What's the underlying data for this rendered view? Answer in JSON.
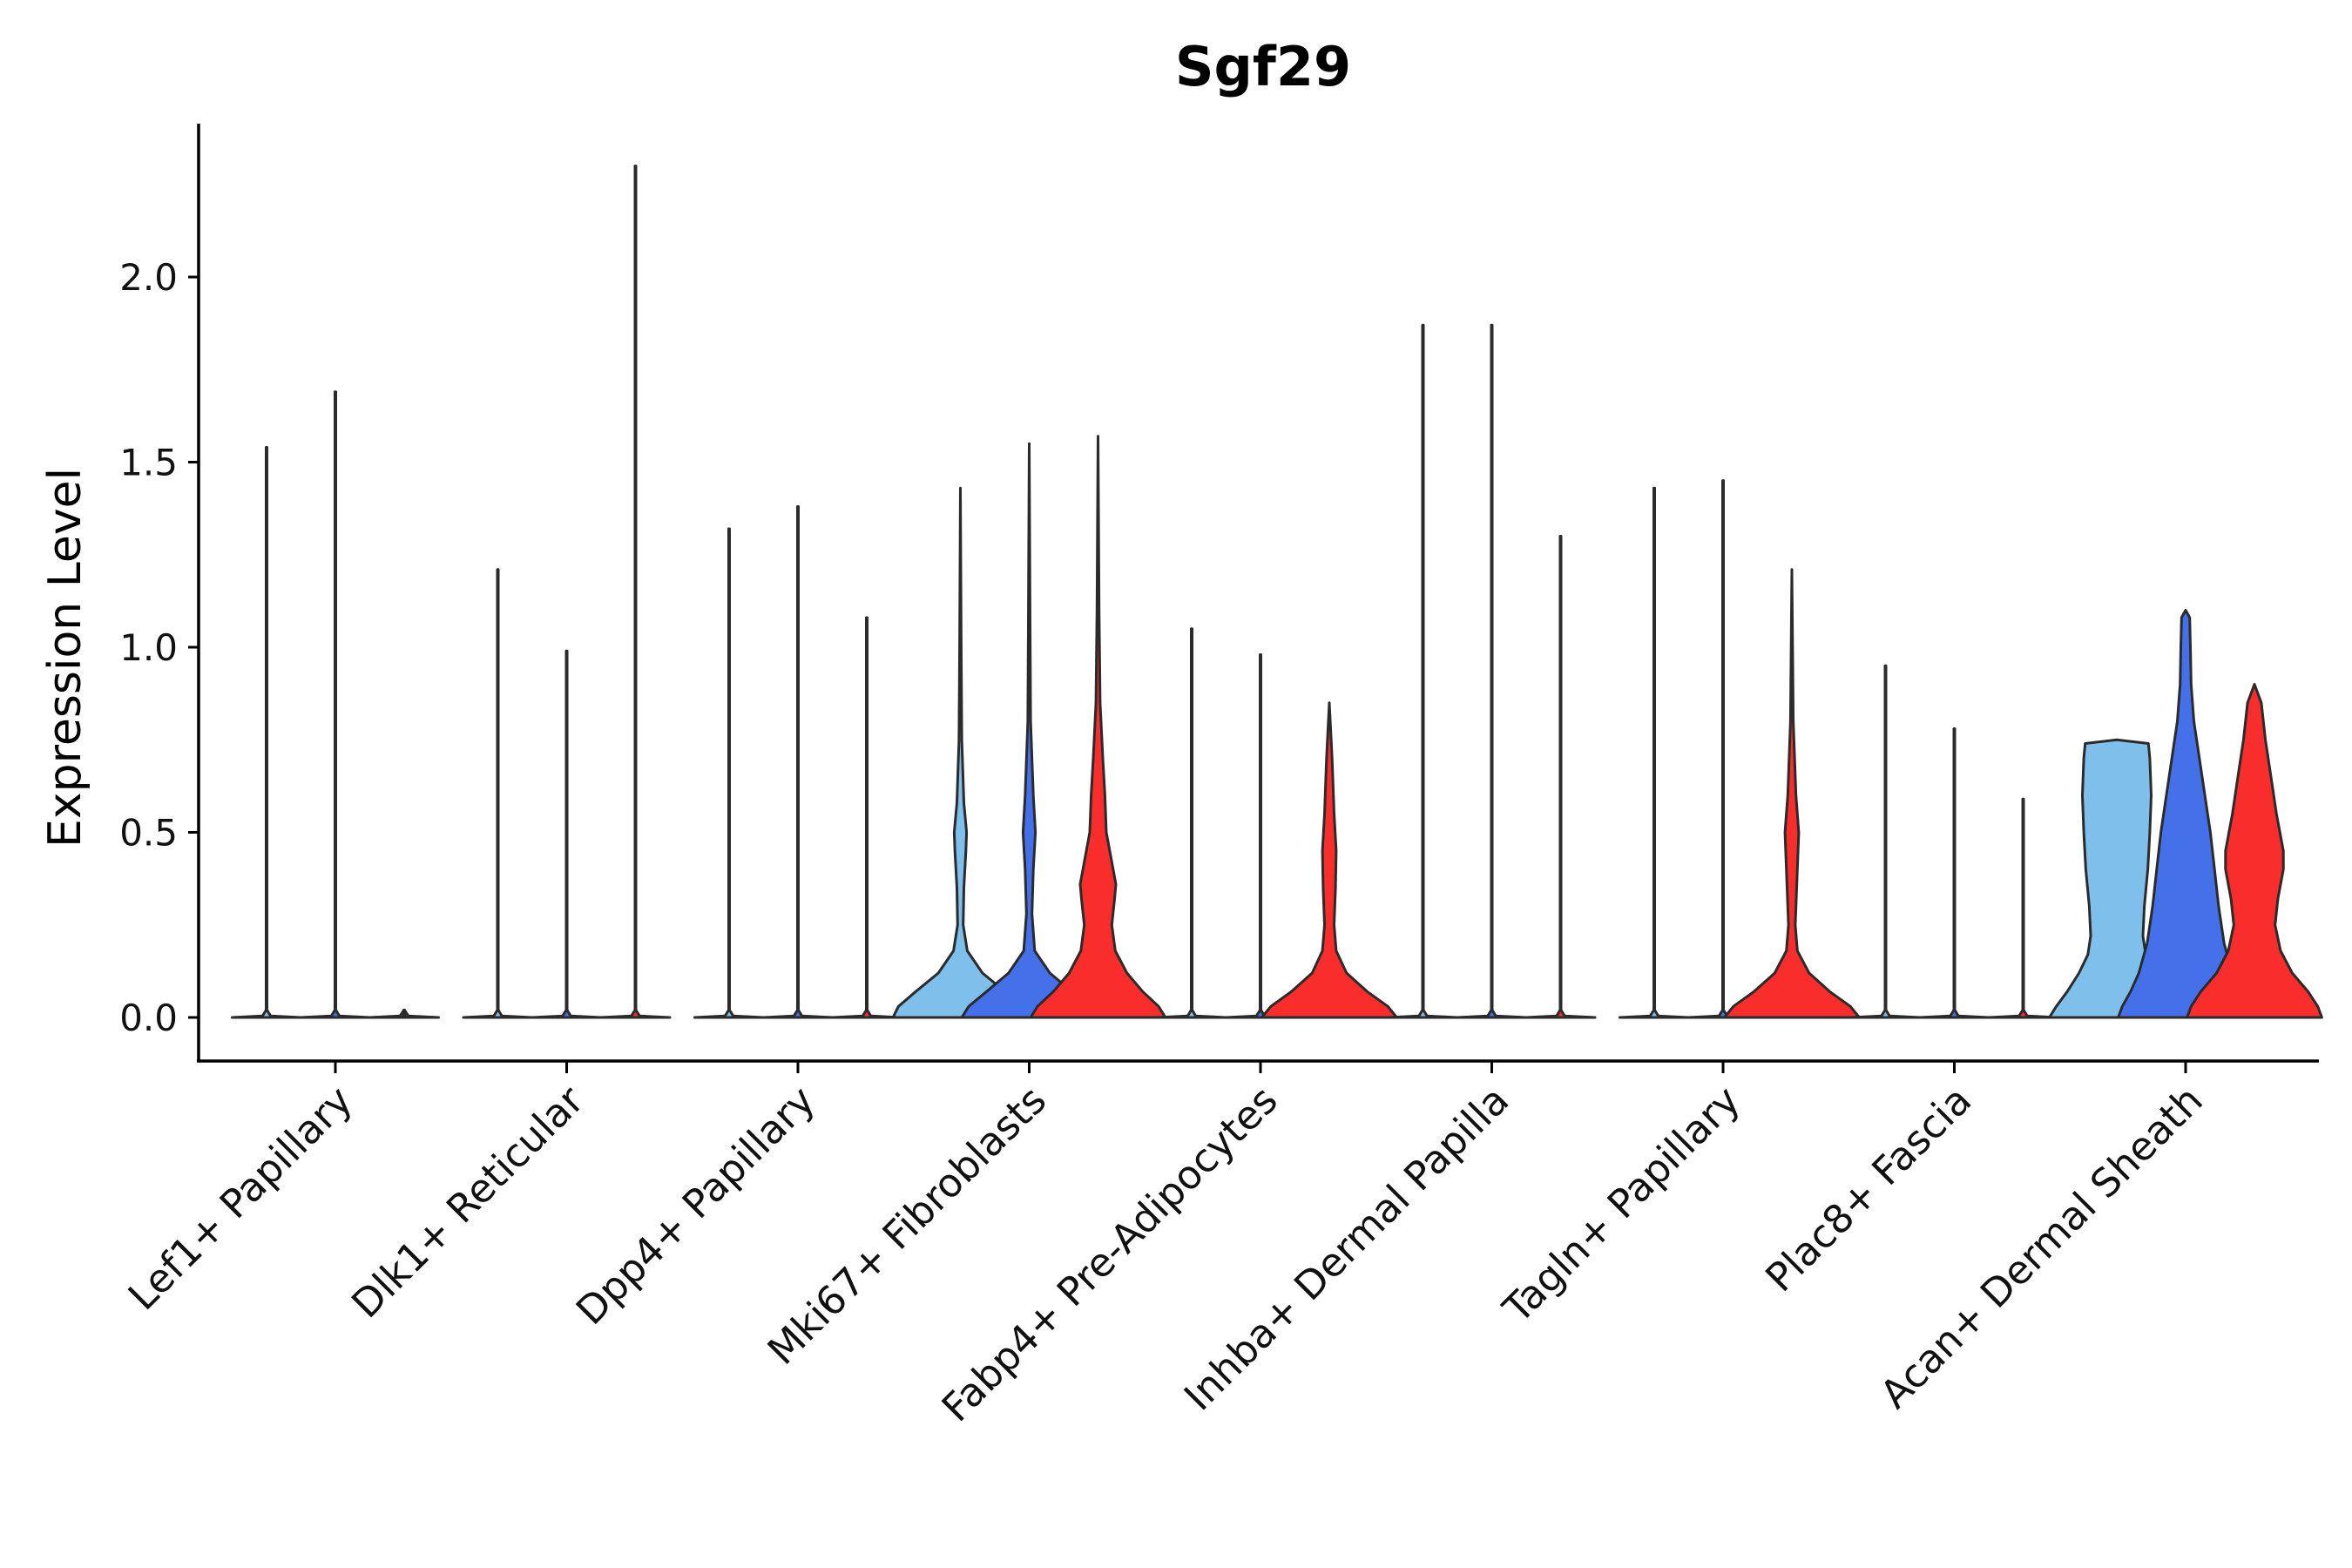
{
  "chart_data": {
    "type": "violin",
    "title": "Sgf29",
    "xlabel": "",
    "ylabel": "Expression Level",
    "ylim": [
      -0.12,
      2.4
    ],
    "yticks": [
      0.0,
      0.5,
      1.0,
      1.5,
      2.0
    ],
    "ytick_labels": [
      "0.0",
      "0.5",
      "1.0",
      "1.5",
      "2.0"
    ],
    "legend": "none",
    "series_colors": [
      "#7fbfec",
      "#4470ea",
      "#fa2d2d"
    ],
    "categories": [
      "Lef1+ Papillary",
      "Dlk1+ Reticular",
      "Dpp4+ Papillary",
      "Mki67+ Fibroblasts",
      "Fabp4+ Pre-Adipocytes",
      "Inhba+ Dermal Papilla",
      "Tagln+ Papillary",
      "Plac8+ Fascia",
      "Acan+ Dermal Sheath"
    ],
    "groups": [
      {
        "category": "Lef1+ Papillary",
        "violins": [
          {
            "series": 0,
            "max": 1.54,
            "shape": "line"
          },
          {
            "series": 1,
            "max": 1.69,
            "shape": "line"
          },
          {
            "series": 2,
            "max": 0.0,
            "shape": "line"
          }
        ]
      },
      {
        "category": "Dlk1+ Reticular",
        "violins": [
          {
            "series": 0,
            "max": 1.21,
            "shape": "line"
          },
          {
            "series": 1,
            "max": 0.99,
            "shape": "line"
          },
          {
            "series": 2,
            "max": 2.3,
            "shape": "line"
          }
        ]
      },
      {
        "category": "Dpp4+ Papillary",
        "violins": [
          {
            "series": 0,
            "max": 1.32,
            "shape": "line"
          },
          {
            "series": 1,
            "max": 1.38,
            "shape": "line"
          },
          {
            "series": 2,
            "max": 1.08,
            "shape": "line"
          }
        ]
      },
      {
        "category": "Mki67+ Fibroblasts",
        "violins": [
          {
            "series": 0,
            "max": 1.43,
            "shape": "full",
            "profile": [
              [
                0.0,
                0.98
              ],
              [
                0.03,
                0.9
              ],
              [
                0.07,
                0.65
              ],
              [
                0.12,
                0.32
              ],
              [
                0.18,
                0.1
              ],
              [
                0.25,
                0.04
              ],
              [
                0.35,
                0.05
              ],
              [
                0.45,
                0.08
              ],
              [
                0.5,
                0.09
              ],
              [
                0.58,
                0.05
              ],
              [
                0.75,
                0.02
              ],
              [
                1.0,
                0.012
              ],
              [
                1.43,
                0.0
              ]
            ]
          },
          {
            "series": 1,
            "max": 1.55,
            "shape": "full",
            "profile": [
              [
                0.0,
                0.98
              ],
              [
                0.03,
                0.88
              ],
              [
                0.07,
                0.62
              ],
              [
                0.12,
                0.3
              ],
              [
                0.18,
                0.08
              ],
              [
                0.28,
                0.04
              ],
              [
                0.4,
                0.06
              ],
              [
                0.5,
                0.09
              ],
              [
                0.6,
                0.06
              ],
              [
                0.8,
                0.02
              ],
              [
                1.1,
                0.012
              ],
              [
                1.55,
                0.0
              ]
            ]
          },
          {
            "series": 2,
            "max": 1.57,
            "shape": "full",
            "profile": [
              [
                0.0,
                0.98
              ],
              [
                0.03,
                0.88
              ],
              [
                0.07,
                0.65
              ],
              [
                0.12,
                0.42
              ],
              [
                0.18,
                0.25
              ],
              [
                0.25,
                0.2
              ],
              [
                0.32,
                0.24
              ],
              [
                0.36,
                0.26
              ],
              [
                0.42,
                0.2
              ],
              [
                0.5,
                0.12
              ],
              [
                0.6,
                0.1
              ],
              [
                0.7,
                0.07
              ],
              [
                0.85,
                0.03
              ],
              [
                1.1,
                0.015
              ],
              [
                1.57,
                0.0
              ]
            ]
          }
        ]
      },
      {
        "category": "Fabp4+ Pre-Adipocytes",
        "violins": [
          {
            "series": 0,
            "max": 1.05,
            "shape": "line"
          },
          {
            "series": 1,
            "max": 0.98,
            "shape": "line"
          },
          {
            "series": 2,
            "max": 0.85,
            "shape": "full",
            "profile": [
              [
                0.0,
                0.98
              ],
              [
                0.03,
                0.85
              ],
              [
                0.07,
                0.55
              ],
              [
                0.12,
                0.25
              ],
              [
                0.18,
                0.1
              ],
              [
                0.25,
                0.07
              ],
              [
                0.35,
                0.09
              ],
              [
                0.45,
                0.1
              ],
              [
                0.55,
                0.07
              ],
              [
                0.7,
                0.04
              ],
              [
                0.85,
                0.0
              ]
            ]
          }
        ]
      },
      {
        "category": "Inhba+ Dermal Papilla",
        "violins": [
          {
            "series": 0,
            "max": 1.87,
            "shape": "line"
          },
          {
            "series": 1,
            "max": 1.87,
            "shape": "line"
          },
          {
            "series": 2,
            "max": 1.3,
            "shape": "line"
          }
        ]
      },
      {
        "category": "Tagln+ Papillary",
        "violins": [
          {
            "series": 0,
            "max": 1.43,
            "shape": "line"
          },
          {
            "series": 1,
            "max": 1.45,
            "shape": "line"
          },
          {
            "series": 2,
            "max": 1.21,
            "shape": "full",
            "profile": [
              [
                0.0,
                0.98
              ],
              [
                0.03,
                0.85
              ],
              [
                0.07,
                0.55
              ],
              [
                0.12,
                0.25
              ],
              [
                0.18,
                0.08
              ],
              [
                0.25,
                0.05
              ],
              [
                0.35,
                0.07
              ],
              [
                0.45,
                0.09
              ],
              [
                0.5,
                0.1
              ],
              [
                0.6,
                0.06
              ],
              [
                0.8,
                0.02
              ],
              [
                1.21,
                0.0
              ]
            ]
          }
        ]
      },
      {
        "category": "Plac8+ Fascia",
        "violins": [
          {
            "series": 0,
            "max": 0.95,
            "shape": "line"
          },
          {
            "series": 1,
            "max": 0.78,
            "shape": "line"
          },
          {
            "series": 2,
            "max": 0.59,
            "shape": "line"
          }
        ]
      },
      {
        "category": "Acan+ Dermal Sheath",
        "violins": [
          {
            "series": 0,
            "max": 0.75,
            "shape": "full",
            "profile": [
              [
                0.0,
                0.98
              ],
              [
                0.03,
                0.88
              ],
              [
                0.07,
                0.72
              ],
              [
                0.12,
                0.55
              ],
              [
                0.17,
                0.42
              ],
              [
                0.22,
                0.38
              ],
              [
                0.3,
                0.4
              ],
              [
                0.4,
                0.45
              ],
              [
                0.5,
                0.48
              ],
              [
                0.6,
                0.5
              ],
              [
                0.7,
                0.48
              ],
              [
                0.74,
                0.46
              ],
              [
                0.75,
                0.0
              ]
            ]
          },
          {
            "series": 1,
            "max": 1.1,
            "shape": "full",
            "profile": [
              [
                0.0,
                0.98
              ],
              [
                0.03,
                0.92
              ],
              [
                0.07,
                0.8
              ],
              [
                0.12,
                0.68
              ],
              [
                0.2,
                0.56
              ],
              [
                0.3,
                0.48
              ],
              [
                0.4,
                0.42
              ],
              [
                0.5,
                0.36
              ],
              [
                0.6,
                0.28
              ],
              [
                0.7,
                0.2
              ],
              [
                0.8,
                0.12
              ],
              [
                0.9,
                0.08
              ],
              [
                1.0,
                0.07
              ],
              [
                1.08,
                0.06
              ],
              [
                1.1,
                0.0
              ]
            ]
          },
          {
            "series": 2,
            "max": 0.9,
            "shape": "full",
            "profile": [
              [
                0.0,
                0.98
              ],
              [
                0.03,
                0.92
              ],
              [
                0.07,
                0.78
              ],
              [
                0.12,
                0.55
              ],
              [
                0.18,
                0.38
              ],
              [
                0.25,
                0.3
              ],
              [
                0.32,
                0.34
              ],
              [
                0.4,
                0.42
              ],
              [
                0.45,
                0.42
              ],
              [
                0.55,
                0.32
              ],
              [
                0.65,
                0.24
              ],
              [
                0.75,
                0.16
              ],
              [
                0.85,
                0.1
              ],
              [
                0.9,
                0.0
              ]
            ]
          }
        ]
      }
    ]
  }
}
